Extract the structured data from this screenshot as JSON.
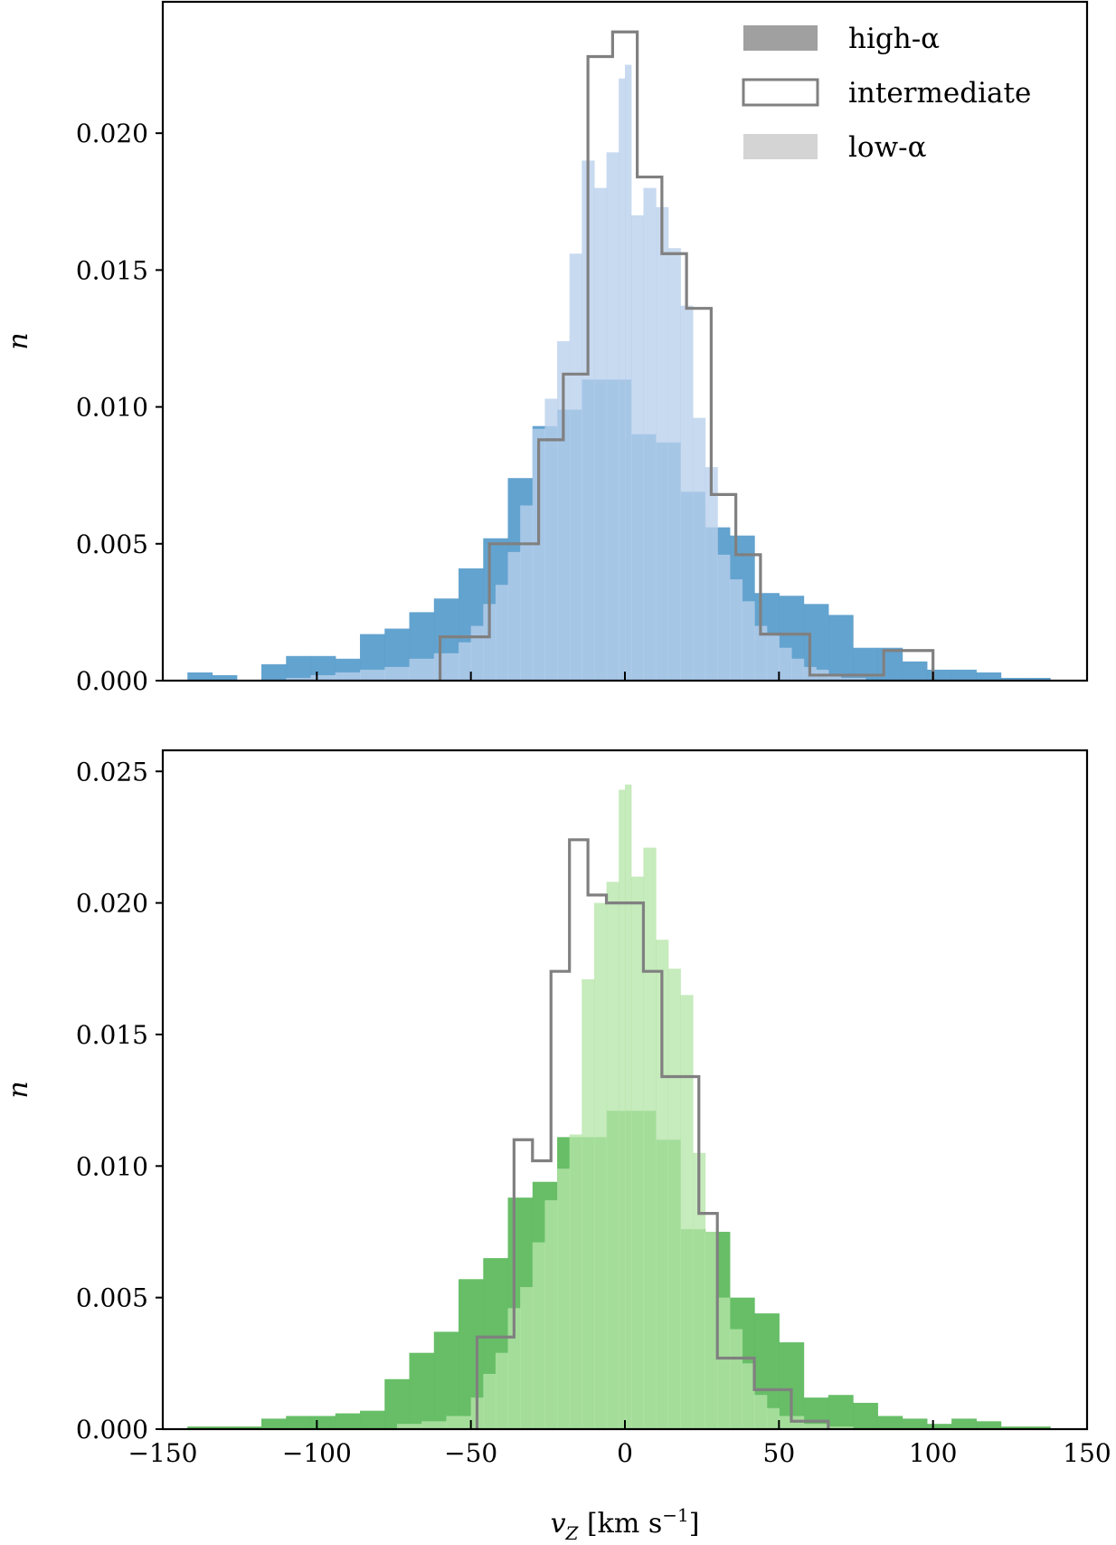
{
  "chart_data": [
    {
      "type": "histogram",
      "ylabel": "n",
      "xlim": [
        -150,
        150
      ],
      "ylim": [
        0,
        0.0248
      ],
      "yticks": [
        0.0,
        0.005,
        0.01,
        0.015,
        0.02
      ],
      "ytick_labels": [
        "0.000",
        "0.005",
        "0.010",
        "0.015",
        "0.020"
      ],
      "xticks": [
        -150,
        -100,
        -50,
        0,
        50,
        100,
        150
      ],
      "xtick_labels": [
        "",
        "",
        "",
        "",
        "",
        "",
        ""
      ],
      "legend": {
        "position": "top-right",
        "entries": [
          "high-α",
          "intermediate",
          "low-α"
        ]
      },
      "colors": {
        "high": "#5b9ecc",
        "low": "#b8cfec",
        "intermediate": "#808080"
      },
      "series": [
        {
          "name": "high-α",
          "style": "filled",
          "edges": [
            -142,
            -134,
            -126,
            -118,
            -110,
            -102,
            -94,
            -86,
            -78,
            -70,
            -62,
            -54,
            -46,
            -38,
            -30,
            -22,
            -14,
            -6,
            2,
            10,
            18,
            26,
            34,
            42,
            50,
            58,
            66,
            74,
            82,
            90,
            98,
            106,
            114,
            122,
            130,
            138
          ],
          "values": [
            0.0003,
            0.0002,
            0.0,
            0.0006,
            0.0009,
            0.0009,
            0.0008,
            0.0017,
            0.0019,
            0.0025,
            0.003,
            0.0041,
            0.0052,
            0.0074,
            0.0093,
            0.0099,
            0.011,
            0.011,
            0.009,
            0.0087,
            0.0069,
            0.0056,
            0.0053,
            0.0032,
            0.0031,
            0.0028,
            0.0024,
            0.0012,
            0.0012,
            0.0007,
            0.0004,
            0.0004,
            0.0003,
            0.0001,
            0.0001
          ]
        },
        {
          "name": "low-α",
          "style": "filled",
          "edges": [
            -110,
            -102,
            -94,
            -86,
            -78,
            -70,
            -62,
            -54,
            -50,
            -46,
            -42,
            -38,
            -34,
            -30,
            -26,
            -22,
            -18,
            -14,
            -10,
            -6,
            -2,
            0,
            2,
            6,
            10,
            14,
            18,
            22,
            26,
            30,
            34,
            38,
            42,
            46,
            50,
            54,
            58,
            62,
            66,
            70,
            78
          ],
          "values": [
            0.0001,
            0.0002,
            0.0003,
            0.0004,
            0.0005,
            0.0008,
            0.001,
            0.0014,
            0.002,
            0.0028,
            0.0035,
            0.0047,
            0.0064,
            0.0092,
            0.0103,
            0.0124,
            0.0156,
            0.019,
            0.018,
            0.0193,
            0.022,
            0.0225,
            0.017,
            0.018,
            0.0173,
            0.0158,
            0.0137,
            0.0096,
            0.0078,
            0.0046,
            0.0037,
            0.0029,
            0.002,
            0.0017,
            0.0012,
            0.0008,
            0.0005,
            0.0004,
            0.0002,
            0.0001
          ]
        },
        {
          "name": "intermediate",
          "style": "step",
          "edges": [
            -60,
            -52,
            -44,
            -36,
            -28,
            -20,
            -12,
            -4,
            4,
            12,
            20,
            28,
            36,
            44,
            52,
            60,
            68,
            76,
            84,
            92,
            100
          ],
          "values": [
            0.0016,
            0.0016,
            0.005,
            0.005,
            0.0088,
            0.0112,
            0.0228,
            0.0237,
            0.0184,
            0.0156,
            0.0136,
            0.0068,
            0.0046,
            0.0017,
            0.0017,
            0.0002,
            0.0002,
            0.0002,
            0.0011,
            0.0011
          ]
        }
      ]
    },
    {
      "type": "histogram",
      "ylabel": "n",
      "xlabel": "v_Z [km s^-1]",
      "xlim": [
        -150,
        150
      ],
      "ylim": [
        0,
        0.0258
      ],
      "yticks": [
        0.0,
        0.005,
        0.01,
        0.015,
        0.02,
        0.025
      ],
      "ytick_labels": [
        "0.000",
        "0.005",
        "0.010",
        "0.015",
        "0.020",
        "0.025"
      ],
      "xticks": [
        -150,
        -100,
        -50,
        0,
        50,
        100,
        150
      ],
      "xtick_labels": [
        "−150",
        "−100",
        "−50",
        "0",
        "50",
        "100",
        "150"
      ],
      "colors": {
        "high": "#5fbb5f",
        "low": "#b6e6a9",
        "intermediate": "#808080"
      },
      "series": [
        {
          "name": "high-α",
          "style": "filled",
          "edges": [
            -142,
            -134,
            -126,
            -118,
            -110,
            -102,
            -94,
            -86,
            -78,
            -70,
            -62,
            -54,
            -46,
            -38,
            -30,
            -22,
            -14,
            -6,
            2,
            10,
            18,
            26,
            34,
            42,
            50,
            58,
            66,
            74,
            82,
            90,
            98,
            106,
            114,
            122,
            130,
            138
          ],
          "values": [
            0.0001,
            0.0001,
            0.0001,
            0.0004,
            0.0005,
            0.0005,
            0.0006,
            0.0007,
            0.0019,
            0.0029,
            0.0037,
            0.0057,
            0.0065,
            0.0088,
            0.0094,
            0.0111,
            0.0111,
            0.0121,
            0.0121,
            0.011,
            0.0076,
            0.0075,
            0.005,
            0.0044,
            0.0033,
            0.0012,
            0.0013,
            0.001,
            0.0005,
            0.0004,
            0.0002,
            0.0004,
            0.0003,
            0.0001,
            0.0001
          ]
        },
        {
          "name": "low-α",
          "style": "filled",
          "edges": [
            -74,
            -66,
            -58,
            -50,
            -46,
            -42,
            -38,
            -34,
            -30,
            -26,
            -22,
            -18,
            -14,
            -10,
            -6,
            -2,
            0,
            2,
            6,
            10,
            14,
            18,
            22,
            26,
            30,
            34,
            38,
            42,
            46,
            50,
            58,
            66,
            74
          ],
          "values": [
            0.0002,
            0.0003,
            0.0005,
            0.0012,
            0.0021,
            0.0029,
            0.0046,
            0.0054,
            0.0071,
            0.0087,
            0.0099,
            0.0112,
            0.0171,
            0.02,
            0.0208,
            0.0243,
            0.0245,
            0.021,
            0.0221,
            0.0186,
            0.0175,
            0.0165,
            0.0105,
            0.0075,
            0.005,
            0.0038,
            0.0025,
            0.0013,
            0.0008,
            0.0005,
            0.0002,
            0.0001
          ]
        },
        {
          "name": "intermediate",
          "style": "step",
          "edges": [
            -48,
            -42,
            -36,
            -30,
            -24,
            -18,
            -12,
            -6,
            0,
            6,
            12,
            18,
            24,
            30,
            36,
            42,
            48,
            54,
            60,
            66
          ],
          "values": [
            0.0035,
            0.0035,
            0.011,
            0.0102,
            0.0174,
            0.0224,
            0.0203,
            0.02,
            0.02,
            0.0174,
            0.0134,
            0.0134,
            0.0082,
            0.0027,
            0.0027,
            0.0015,
            0.0015,
            0.0003,
            0.0003
          ]
        }
      ]
    }
  ]
}
